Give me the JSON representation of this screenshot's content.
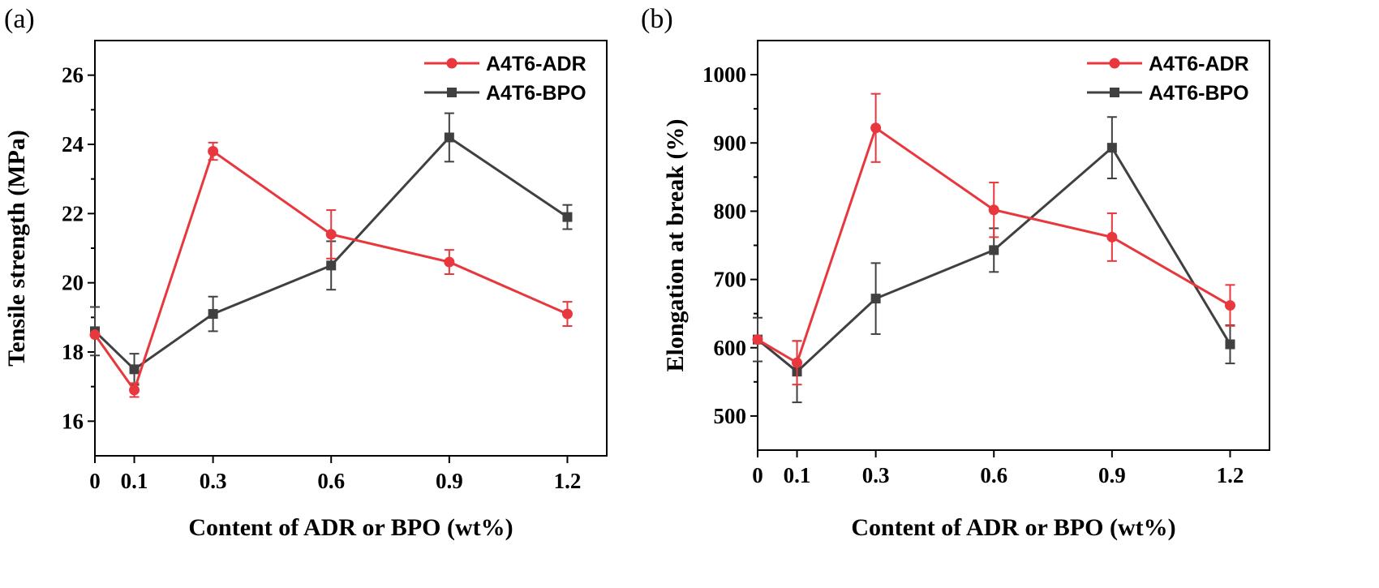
{
  "chart_data": [
    {
      "type": "line",
      "panel_label": "(a)",
      "xlabel": "Content of ADR or BPO (wt%)",
      "ylabel": "Tensile strength (MPa)",
      "x": [
        0,
        0.1,
        0.3,
        0.6,
        0.9,
        1.2
      ],
      "x_tick_labels": [
        "0",
        "0.1",
        "0.3",
        "0.6",
        "0.9",
        "1.2"
      ],
      "xlim": [
        0,
        1.3
      ],
      "ylim": [
        15,
        27
      ],
      "y_ticks": [
        16,
        18,
        20,
        22,
        24,
        26
      ],
      "y_tick_labels": [
        "16",
        "18",
        "20",
        "22",
        "24",
        "26"
      ],
      "legend_position": "top-right",
      "series": [
        {
          "name": "A4T6-ADR",
          "marker": "circle",
          "color": "#e8373d",
          "values": [
            18.5,
            16.9,
            23.8,
            21.4,
            20.6,
            19.1
          ],
          "errors": [
            0.0,
            0.2,
            0.25,
            0.7,
            0.35,
            0.35
          ]
        },
        {
          "name": "A4T6-BPO",
          "marker": "square",
          "color": "#404040",
          "values": [
            18.6,
            17.5,
            19.1,
            20.5,
            24.2,
            21.9
          ],
          "errors": [
            0.7,
            0.45,
            0.5,
            0.7,
            0.7,
            0.35
          ]
        }
      ]
    },
    {
      "type": "line",
      "panel_label": "(b)",
      "xlabel": "Content of ADR or BPO (wt%)",
      "ylabel": "Elongation at break (%)",
      "x": [
        0,
        0.1,
        0.3,
        0.6,
        0.9,
        1.2
      ],
      "x_tick_labels": [
        "0",
        "0.1",
        "0.3",
        "0.6",
        "0.9",
        "1.2"
      ],
      "xlim": [
        0,
        1.3
      ],
      "ylim": [
        450,
        1050
      ],
      "y_ticks": [
        500,
        600,
        700,
        800,
        900,
        1000
      ],
      "y_tick_labels": [
        "500",
        "600",
        "700",
        "800",
        "900",
        "1000"
      ],
      "legend_position": "top-right",
      "series": [
        {
          "name": "A4T6-ADR",
          "marker": "circle",
          "color": "#e8373d",
          "values": [
            612,
            578,
            922,
            802,
            762,
            662
          ],
          "errors": [
            0,
            32,
            50,
            40,
            35,
            30
          ]
        },
        {
          "name": "A4T6-BPO",
          "marker": "square",
          "color": "#404040",
          "values": [
            612,
            565,
            672,
            743,
            893,
            605
          ],
          "errors": [
            32,
            45,
            52,
            32,
            45,
            28
          ]
        }
      ]
    }
  ]
}
